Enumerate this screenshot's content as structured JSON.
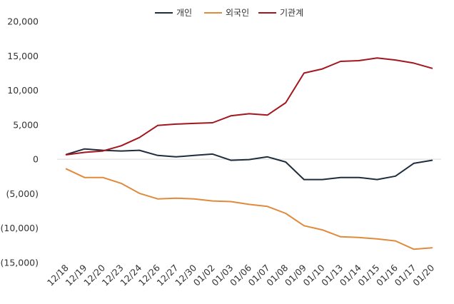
{
  "chart_data": {
    "type": "line",
    "categories": [
      "12/18",
      "12/19",
      "12/20",
      "12/23",
      "12/24",
      "12/26",
      "12/27",
      "12/30",
      "01/02",
      "01/03",
      "01/06",
      "01/07",
      "01/08",
      "01/09",
      "01/10",
      "01/13",
      "01/14",
      "01/15",
      "01/16",
      "01/17",
      "01/20"
    ],
    "series": [
      {
        "name": "개인",
        "color": "#1f2d3d",
        "values": [
          700,
          1500,
          1300,
          1200,
          1300,
          550,
          350,
          550,
          750,
          -150,
          -50,
          350,
          -400,
          -2950,
          -2950,
          -2650,
          -2650,
          -2950,
          -2450,
          -600,
          -150
        ]
      },
      {
        "name": "외국인",
        "color": "#e08a3c",
        "values": [
          -1400,
          -2650,
          -2650,
          -3500,
          -4950,
          -5750,
          -5650,
          -5750,
          -6050,
          -6150,
          -6550,
          -6850,
          -7850,
          -9650,
          -10250,
          -11250,
          -11350,
          -11550,
          -11850,
          -13050,
          -12850
        ]
      },
      {
        "name": "기관계",
        "color": "#a3161d",
        "values": [
          650,
          1000,
          1200,
          1950,
          3150,
          4900,
          5100,
          5200,
          5300,
          6300,
          6600,
          6400,
          8200,
          12500,
          13100,
          14200,
          14300,
          14700,
          14400,
          13950,
          13200
        ]
      }
    ],
    "yticks": [
      "20,000",
      "15,000",
      "10,000",
      "5,000",
      "0",
      "(5,000)",
      "(10,000)",
      "(15,000)"
    ],
    "ytick_values": [
      20000,
      15000,
      10000,
      5000,
      0,
      -5000,
      -10000,
      -15000
    ],
    "ylim": [
      -15000,
      20000
    ],
    "legend": "top-center",
    "grid": false
  }
}
